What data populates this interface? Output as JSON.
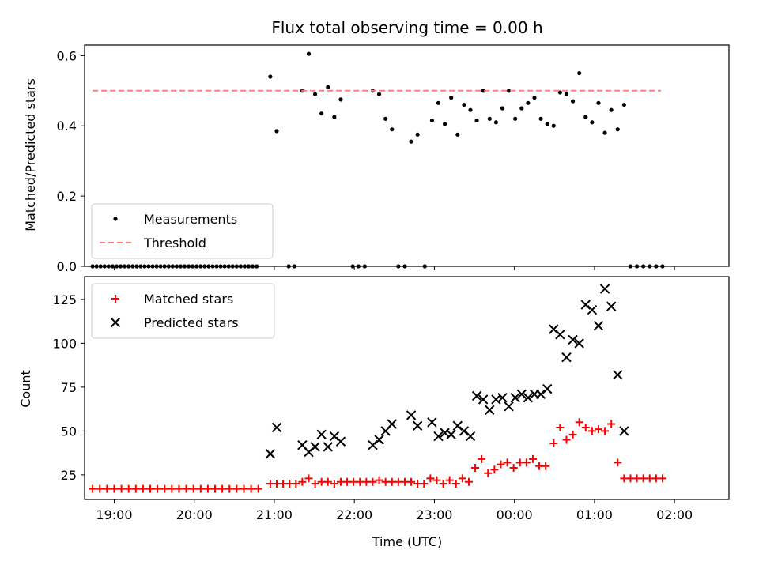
{
  "chart_data": [
    {
      "type": "scatter",
      "title": "Flux total observing time = 0.00 h",
      "xlabel": "",
      "ylabel": "Matched/Predicted stars",
      "xlim": [
        -0.1,
        7.95
      ],
      "ylim": [
        0,
        0.63
      ],
      "yticks": [
        0.0,
        0.2,
        0.4,
        0.6
      ],
      "ytick_labels": [
        "0.0",
        "0.2",
        "0.4",
        "0.6"
      ],
      "legend": "bottom-left",
      "series": [
        {
          "name": "Measurements",
          "style": "dot",
          "color": "#000000",
          "points": [
            [
              0,
              0
            ],
            [
              0.05,
              0
            ],
            [
              0.1,
              0
            ],
            [
              0.15,
              0
            ],
            [
              0.2,
              0
            ],
            [
              0.25,
              0
            ],
            [
              0.3,
              0
            ],
            [
              0.35,
              0
            ],
            [
              0.4,
              0
            ],
            [
              0.45,
              0
            ],
            [
              0.5,
              0
            ],
            [
              0.55,
              0
            ],
            [
              0.6,
              0
            ],
            [
              0.65,
              0
            ],
            [
              0.7,
              0
            ],
            [
              0.75,
              0
            ],
            [
              0.8,
              0
            ],
            [
              0.85,
              0
            ],
            [
              0.9,
              0
            ],
            [
              0.95,
              0
            ],
            [
              1.0,
              0
            ],
            [
              1.05,
              0
            ],
            [
              1.1,
              0
            ],
            [
              1.15,
              0
            ],
            [
              1.2,
              0
            ],
            [
              1.25,
              0
            ],
            [
              1.3,
              0
            ],
            [
              1.35,
              0
            ],
            [
              1.4,
              0
            ],
            [
              1.45,
              0
            ],
            [
              1.5,
              0
            ],
            [
              1.55,
              0
            ],
            [
              1.6,
              0
            ],
            [
              1.65,
              0
            ],
            [
              1.7,
              0
            ],
            [
              1.75,
              0
            ],
            [
              1.8,
              0
            ],
            [
              1.85,
              0
            ],
            [
              1.9,
              0
            ],
            [
              1.95,
              0
            ],
            [
              2.0,
              0
            ],
            [
              2.05,
              0
            ],
            [
              2.22,
              0.54
            ],
            [
              2.3,
              0.385
            ],
            [
              2.45,
              0
            ],
            [
              2.52,
              0
            ],
            [
              2.62,
              0.5
            ],
            [
              2.7,
              0.605
            ],
            [
              2.78,
              0.49
            ],
            [
              2.86,
              0.435
            ],
            [
              2.94,
              0.51
            ],
            [
              3.02,
              0.425
            ],
            [
              3.1,
              0.475
            ],
            [
              3.25,
              0
            ],
            [
              3.32,
              0
            ],
            [
              3.4,
              0
            ],
            [
              3.5,
              0.5
            ],
            [
              3.58,
              0.49
            ],
            [
              3.66,
              0.42
            ],
            [
              3.74,
              0.39
            ],
            [
              3.82,
              0
            ],
            [
              3.9,
              0
            ],
            [
              3.98,
              0.355
            ],
            [
              4.06,
              0.375
            ],
            [
              4.15,
              0
            ],
            [
              4.24,
              0.415
            ],
            [
              4.32,
              0.465
            ],
            [
              4.4,
              0.405
            ],
            [
              4.48,
              0.48
            ],
            [
              4.56,
              0.375
            ],
            [
              4.64,
              0.46
            ],
            [
              4.72,
              0.445
            ],
            [
              4.8,
              0.415
            ],
            [
              4.88,
              0.5
            ],
            [
              4.96,
              0.42
            ],
            [
              5.04,
              0.41
            ],
            [
              5.12,
              0.45
            ],
            [
              5.2,
              0.5
            ],
            [
              5.28,
              0.42
            ],
            [
              5.36,
              0.45
            ],
            [
              5.44,
              0.465
            ],
            [
              5.52,
              0.48
            ],
            [
              5.6,
              0.42
            ],
            [
              5.68,
              0.405
            ],
            [
              5.76,
              0.4
            ],
            [
              5.84,
              0.495
            ],
            [
              5.92,
              0.49
            ],
            [
              6.0,
              0.47
            ],
            [
              6.08,
              0.55
            ],
            [
              6.16,
              0.425
            ],
            [
              6.24,
              0.41
            ],
            [
              6.32,
              0.465
            ],
            [
              6.4,
              0.38
            ],
            [
              6.48,
              0.445
            ],
            [
              6.56,
              0.39
            ],
            [
              6.64,
              0.46
            ],
            [
              6.72,
              0
            ],
            [
              6.8,
              0
            ],
            [
              6.88,
              0
            ],
            [
              6.96,
              0
            ],
            [
              7.04,
              0
            ],
            [
              7.12,
              0
            ]
          ]
        },
        {
          "name": "Threshold",
          "style": "dashed-line",
          "color": "#ff7f7f",
          "x": [
            0,
            7.1
          ],
          "values": [
            0.5,
            0.5
          ]
        }
      ]
    },
    {
      "type": "scatter",
      "title": "",
      "xlabel": "Time (UTC)",
      "ylabel": "Count",
      "xlim": [
        -0.1,
        7.95
      ],
      "ylim": [
        11,
        138
      ],
      "yticks": [
        25,
        50,
        75,
        100,
        125
      ],
      "ytick_labels": [
        "25",
        "50",
        "75",
        "100",
        "125"
      ],
      "x_unit": "hours after 18:44 UTC",
      "xticks": [
        0.27,
        1.27,
        2.27,
        3.27,
        4.27,
        5.27,
        6.27,
        7.27
      ],
      "xtick_labels": [
        "19:00",
        "20:00",
        "21:00",
        "22:00",
        "23:00",
        "00:00",
        "01:00",
        "02:00"
      ],
      "legend": "top-left",
      "series": [
        {
          "name": "Matched stars",
          "style": "plus",
          "color": "#ff0000",
          "points": [
            [
              0,
              17
            ],
            [
              0.09,
              17
            ],
            [
              0.18,
              17
            ],
            [
              0.27,
              17
            ],
            [
              0.36,
              17
            ],
            [
              0.45,
              17
            ],
            [
              0.54,
              17
            ],
            [
              0.63,
              17
            ],
            [
              0.72,
              17
            ],
            [
              0.81,
              17
            ],
            [
              0.9,
              17
            ],
            [
              0.99,
              17
            ],
            [
              1.08,
              17
            ],
            [
              1.17,
              17
            ],
            [
              1.26,
              17
            ],
            [
              1.35,
              17
            ],
            [
              1.44,
              17
            ],
            [
              1.53,
              17
            ],
            [
              1.62,
              17
            ],
            [
              1.71,
              17
            ],
            [
              1.8,
              17
            ],
            [
              1.89,
              17
            ],
            [
              1.98,
              17
            ],
            [
              2.07,
              17
            ],
            [
              2.22,
              20
            ],
            [
              2.3,
              20
            ],
            [
              2.38,
              20
            ],
            [
              2.46,
              20
            ],
            [
              2.54,
              20
            ],
            [
              2.62,
              21
            ],
            [
              2.7,
              23
            ],
            [
              2.78,
              20
            ],
            [
              2.86,
              21
            ],
            [
              2.94,
              21
            ],
            [
              3.02,
              20
            ],
            [
              3.1,
              21
            ],
            [
              3.18,
              21
            ],
            [
              3.26,
              21
            ],
            [
              3.34,
              21
            ],
            [
              3.42,
              21
            ],
            [
              3.5,
              21
            ],
            [
              3.58,
              22
            ],
            [
              3.66,
              21
            ],
            [
              3.74,
              21
            ],
            [
              3.82,
              21
            ],
            [
              3.9,
              21
            ],
            [
              3.98,
              21
            ],
            [
              4.06,
              20
            ],
            [
              4.14,
              20
            ],
            [
              4.22,
              23
            ],
            [
              4.3,
              22
            ],
            [
              4.38,
              20
            ],
            [
              4.46,
              22
            ],
            [
              4.54,
              20
            ],
            [
              4.62,
              23
            ],
            [
              4.7,
              21
            ],
            [
              4.78,
              29
            ],
            [
              4.86,
              34
            ],
            [
              4.94,
              26
            ],
            [
              5.02,
              28
            ],
            [
              5.1,
              31
            ],
            [
              5.18,
              32
            ],
            [
              5.26,
              29
            ],
            [
              5.34,
              32
            ],
            [
              5.42,
              32
            ],
            [
              5.5,
              34
            ],
            [
              5.58,
              30
            ],
            [
              5.66,
              30
            ],
            [
              5.76,
              43
            ],
            [
              5.84,
              52
            ],
            [
              5.92,
              45
            ],
            [
              6.0,
              48
            ],
            [
              6.08,
              55
            ],
            [
              6.16,
              52
            ],
            [
              6.24,
              50
            ],
            [
              6.32,
              51
            ],
            [
              6.4,
              50
            ],
            [
              6.48,
              54
            ],
            [
              6.56,
              32
            ],
            [
              6.64,
              23
            ],
            [
              6.72,
              23
            ],
            [
              6.8,
              23
            ],
            [
              6.88,
              23
            ],
            [
              6.96,
              23
            ],
            [
              7.04,
              23
            ],
            [
              7.12,
              23
            ]
          ]
        },
        {
          "name": "Predicted stars",
          "style": "x",
          "color": "#000000",
          "points": [
            [
              2.22,
              37
            ],
            [
              2.3,
              52
            ],
            [
              2.62,
              42
            ],
            [
              2.7,
              38
            ],
            [
              2.78,
              41
            ],
            [
              2.86,
              48
            ],
            [
              2.94,
              41
            ],
            [
              3.02,
              47
            ],
            [
              3.1,
              44
            ],
            [
              3.5,
              42
            ],
            [
              3.58,
              45
            ],
            [
              3.66,
              50
            ],
            [
              3.74,
              54
            ],
            [
              3.98,
              59
            ],
            [
              4.06,
              53
            ],
            [
              4.24,
              55
            ],
            [
              4.32,
              47
            ],
            [
              4.4,
              49
            ],
            [
              4.48,
              48
            ],
            [
              4.56,
              53
            ],
            [
              4.64,
              50
            ],
            [
              4.72,
              47
            ],
            [
              4.8,
              70
            ],
            [
              4.88,
              68
            ],
            [
              4.96,
              62
            ],
            [
              5.04,
              68
            ],
            [
              5.12,
              69
            ],
            [
              5.2,
              64
            ],
            [
              5.28,
              69
            ],
            [
              5.36,
              71
            ],
            [
              5.44,
              69
            ],
            [
              5.52,
              71
            ],
            [
              5.6,
              71
            ],
            [
              5.68,
              74
            ],
            [
              5.76,
              108
            ],
            [
              5.84,
              105
            ],
            [
              5.92,
              92
            ],
            [
              6.0,
              102
            ],
            [
              6.08,
              100
            ],
            [
              6.16,
              122
            ],
            [
              6.24,
              119
            ],
            [
              6.32,
              110
            ],
            [
              6.4,
              131
            ],
            [
              6.48,
              121
            ],
            [
              6.56,
              82
            ],
            [
              6.64,
              50
            ]
          ]
        }
      ]
    }
  ]
}
